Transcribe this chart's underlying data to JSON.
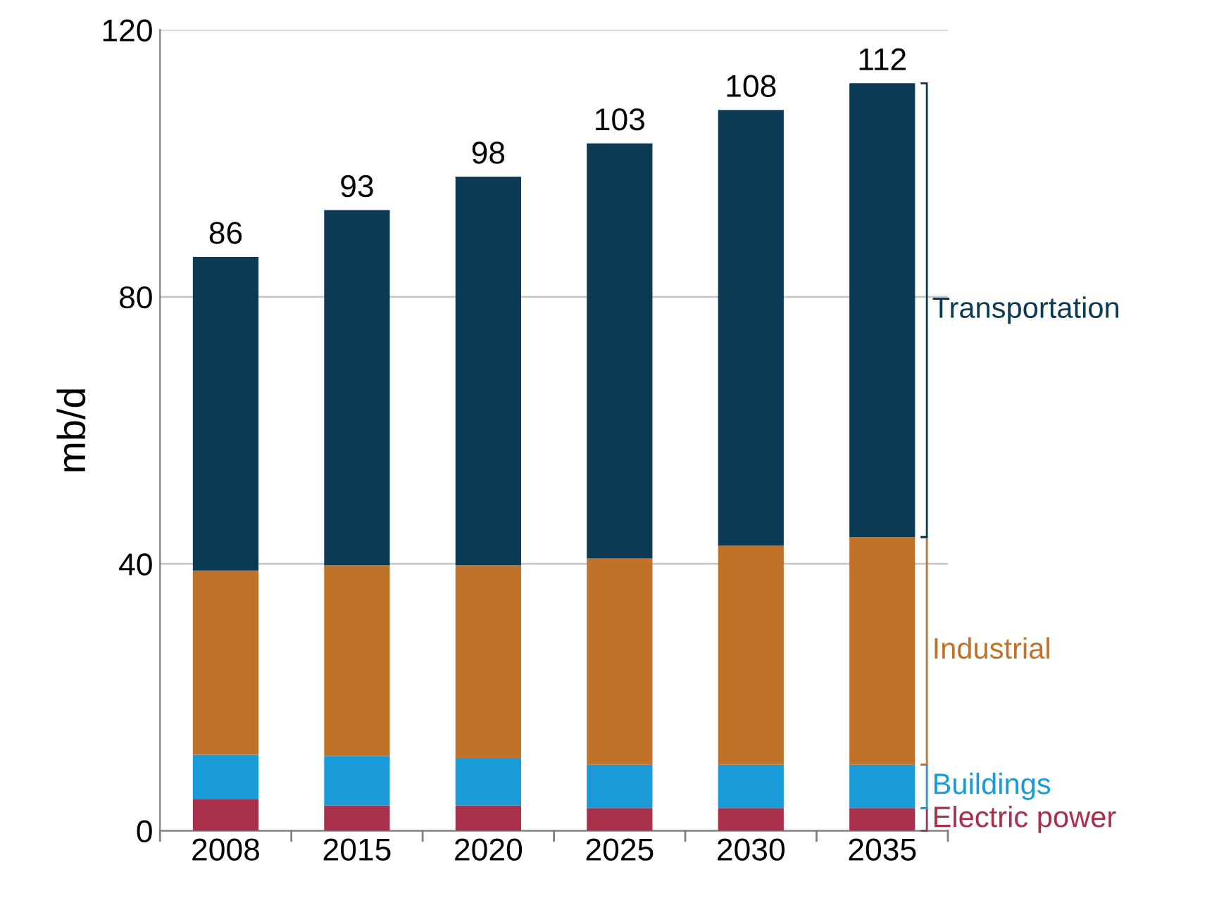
{
  "chart_data": {
    "type": "bar",
    "stacked": true,
    "ylabel": "mb/d",
    "categories": [
      "2008",
      "2015",
      "2020",
      "2025",
      "2030",
      "2035"
    ],
    "series": [
      {
        "name": "Electric power",
        "color": "#a8304a",
        "values": [
          4.7,
          3.8,
          3.8,
          3.4,
          3.4,
          3.4
        ]
      },
      {
        "name": "Buildings",
        "color": "#1a9ad6",
        "values": [
          6.7,
          7.4,
          7.0,
          6.5,
          6.5,
          6.5
        ]
      },
      {
        "name": "Industrial",
        "color": "#c0722a",
        "values": [
          27.6,
          28.6,
          29.0,
          30.9,
          32.8,
          34.1
        ]
      },
      {
        "name": "Transportation",
        "color": "#0b3a55",
        "values": [
          47,
          53.2,
          58.2,
          62.2,
          65.3,
          68
        ]
      }
    ],
    "totals": [
      "86",
      "93",
      "98",
      "103",
      "108",
      "112"
    ],
    "ylim": [
      0,
      120
    ],
    "yticks": [
      0,
      40,
      80,
      120
    ],
    "grid": "y",
    "legend": "right"
  }
}
